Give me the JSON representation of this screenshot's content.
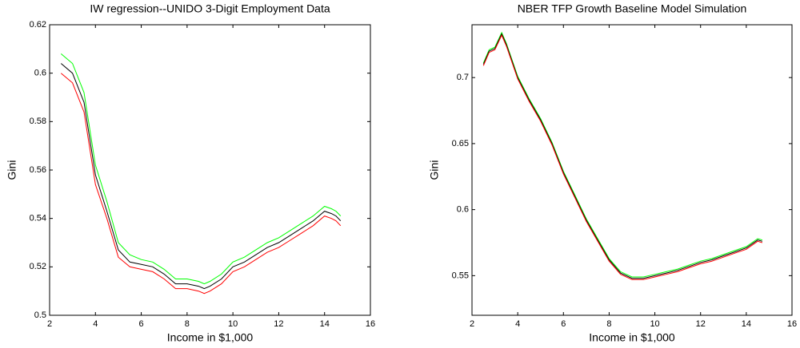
{
  "chart_data": [
    {
      "type": "line",
      "title": "IW regression--UNIDO 3-Digit Employment Data",
      "xlabel": "Income in $1,000",
      "ylabel": "Gini",
      "xlim": [
        2,
        16
      ],
      "xticks": [
        2,
        4,
        6,
        8,
        10,
        12,
        14,
        16
      ],
      "ylim": [
        0.5,
        0.62
      ],
      "yticks": [
        0.5,
        0.52,
        0.54,
        0.56,
        0.58,
        0.6,
        0.62
      ],
      "x": [
        2.5,
        3,
        3.5,
        4,
        4.5,
        5,
        5.5,
        6,
        6.5,
        7,
        7.5,
        8,
        8.5,
        8.75,
        9,
        9.5,
        10,
        10.5,
        11,
        11.5,
        12,
        12.5,
        13,
        13.5,
        14,
        14.3,
        14.5,
        14.7
      ],
      "series": [
        {
          "color": "#00ff00",
          "values": [
            0.608,
            0.604,
            0.592,
            0.562,
            0.547,
            0.53,
            0.525,
            0.523,
            0.522,
            0.519,
            0.515,
            0.515,
            0.514,
            0.513,
            0.514,
            0.517,
            0.522,
            0.524,
            0.527,
            0.53,
            0.532,
            0.535,
            0.538,
            0.541,
            0.545,
            0.544,
            0.543,
            0.541
          ]
        },
        {
          "color": "#000000",
          "values": [
            0.604,
            0.6,
            0.588,
            0.558,
            0.543,
            0.527,
            0.522,
            0.521,
            0.52,
            0.517,
            0.513,
            0.513,
            0.512,
            0.511,
            0.512,
            0.515,
            0.52,
            0.522,
            0.525,
            0.528,
            0.53,
            0.533,
            0.536,
            0.539,
            0.543,
            0.542,
            0.541,
            0.539
          ]
        },
        {
          "color": "#ff0000",
          "values": [
            0.6,
            0.596,
            0.584,
            0.554,
            0.54,
            0.524,
            0.52,
            0.519,
            0.518,
            0.515,
            0.511,
            0.511,
            0.51,
            0.509,
            0.51,
            0.513,
            0.518,
            0.52,
            0.523,
            0.526,
            0.528,
            0.531,
            0.534,
            0.537,
            0.541,
            0.54,
            0.539,
            0.537
          ]
        }
      ]
    },
    {
      "type": "line",
      "title": "NBER TFP Growth Baseline Model Simulation",
      "xlabel": "Income in $1,000",
      "ylabel": "Gini",
      "xlim": [
        2,
        16
      ],
      "xticks": [
        2,
        4,
        6,
        8,
        10,
        12,
        14,
        16
      ],
      "ylim": [
        0.52,
        0.74
      ],
      "yticks": [
        0.55,
        0.6,
        0.65,
        0.7
      ],
      "x": [
        2.5,
        2.75,
        3,
        3.3,
        3.5,
        4,
        4.5,
        5,
        5.5,
        6,
        6.5,
        7,
        7.5,
        8,
        8.5,
        9,
        9.5,
        10,
        10.5,
        11,
        11.5,
        12,
        12.5,
        13,
        13.5,
        14,
        14.5,
        14.7
      ],
      "series": [
        {
          "color": "#00ff00",
          "values": [
            0.711,
            0.721,
            0.723,
            0.734,
            0.726,
            0.701,
            0.684,
            0.669,
            0.651,
            0.629,
            0.611,
            0.593,
            0.578,
            0.563,
            0.553,
            0.549,
            0.549,
            0.551,
            0.553,
            0.555,
            0.558,
            0.561,
            0.563,
            0.566,
            0.569,
            0.572,
            0.578,
            0.577
          ]
        },
        {
          "color": "#000000",
          "values": [
            0.71,
            0.72,
            0.722,
            0.733,
            0.725,
            0.7,
            0.683,
            0.668,
            0.65,
            0.628,
            0.61,
            0.592,
            0.577,
            0.562,
            0.552,
            0.548,
            0.548,
            0.55,
            0.552,
            0.554,
            0.557,
            0.56,
            0.562,
            0.565,
            0.568,
            0.571,
            0.577,
            0.576
          ]
        },
        {
          "color": "#ff0000",
          "values": [
            0.709,
            0.719,
            0.721,
            0.732,
            0.724,
            0.699,
            0.682,
            0.667,
            0.649,
            0.627,
            0.609,
            0.591,
            0.576,
            0.561,
            0.551,
            0.547,
            0.547,
            0.549,
            0.551,
            0.553,
            0.556,
            0.559,
            0.561,
            0.564,
            0.567,
            0.57,
            0.576,
            0.575
          ]
        }
      ]
    }
  ]
}
